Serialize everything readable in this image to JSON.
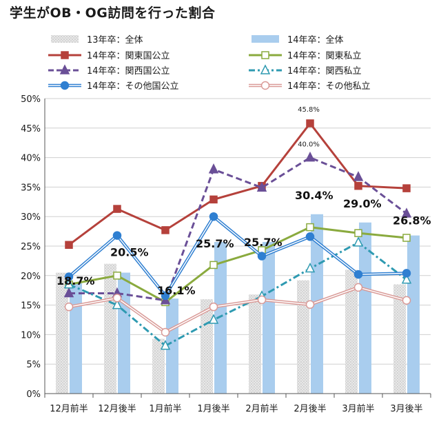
{
  "title": "学生がOB・OG訪問を行った割合",
  "colors": {
    "gray_bar": "#d9d9d9",
    "blue_bar": "#a9cdee",
    "kanto_kokkoritsu": "#b5413b",
    "kanto_shiritsu": "#8aaa3e",
    "kansai_kokkoritsu": "#6a4f97",
    "kansai_shiritsu": "#2e9ab1",
    "other_kokkoritsu": "#2f7fd1",
    "other_shiritsu": "#d99a97"
  },
  "chart_data": {
    "type": "bar+line",
    "title": "学生がOB・OG訪問を行った割合",
    "categories": [
      "12月前半",
      "12月後半",
      "1月前半",
      "1月後半",
      "2月前半",
      "2月後半",
      "3月前半",
      "3月後半"
    ],
    "y_ticks": [
      "0%",
      "5%",
      "10%",
      "15%",
      "20%",
      "25%",
      "30%",
      "35%",
      "40%",
      "45%",
      "50%"
    ],
    "ylim": [
      0,
      50
    ],
    "legend_position": "top",
    "bars": [
      {
        "name": "13年卒：全体",
        "values": [
          20.5,
          22.0,
          9.3,
          16.0,
          16.8,
          19.2,
          21.0,
          18.5
        ],
        "color_key": "gray_bar",
        "pattern": "dots"
      },
      {
        "name": "14年卒：全体",
        "values": [
          18.7,
          20.5,
          16.1,
          25.7,
          25.7,
          30.4,
          29.0,
          26.8
        ],
        "color_key": "blue_bar"
      }
    ],
    "lines": [
      {
        "name": "14年卒：関東国公立",
        "values": [
          25.2,
          31.3,
          27.7,
          32.9,
          35.2,
          45.8,
          35.2,
          34.8
        ],
        "color_key": "kanto_kokkoritsu",
        "marker": "square-filled",
        "dash": "solid"
      },
      {
        "name": "14年卒：関東私立",
        "values": [
          18.5,
          20.0,
          15.5,
          21.8,
          24.3,
          28.2,
          27.2,
          26.4
        ],
        "color_key": "kanto_shiritsu",
        "marker": "square-open",
        "dash": "solid"
      },
      {
        "name": "14年卒：関西国公立",
        "values": [
          17.0,
          17.0,
          15.8,
          38.0,
          34.9,
          40.0,
          36.7,
          30.5
        ],
        "color_key": "kansai_kokkoritsu",
        "marker": "triangle-filled",
        "dash": "dashed"
      },
      {
        "name": "14年卒：関西私立",
        "values": [
          18.5,
          15.0,
          8.1,
          12.5,
          16.5,
          21.2,
          25.6,
          19.3
        ],
        "color_key": "kansai_shiritsu",
        "marker": "triangle-open",
        "dash": "dashdot"
      },
      {
        "name": "14年卒：その他国公立",
        "values": [
          19.8,
          26.8,
          16.6,
          30.0,
          23.3,
          26.6,
          20.2,
          20.4
        ],
        "color_key": "other_kokkoritsu",
        "marker": "circle-filled",
        "dash": "double"
      },
      {
        "name": "14年卒：その他私立",
        "values": [
          14.7,
          16.2,
          10.4,
          14.7,
          15.9,
          15.1,
          18.0,
          15.8
        ],
        "color_key": "other_shiritsu",
        "marker": "circle-open",
        "dash": "double"
      }
    ],
    "data_labels_big": [
      "18.7%",
      "20.5%",
      "16.1%",
      "25.7%",
      "25.7%",
      "30.4%",
      "29.0%",
      "26.8%"
    ],
    "data_labels_small": [
      "45.8%",
      "40.0%"
    ]
  }
}
